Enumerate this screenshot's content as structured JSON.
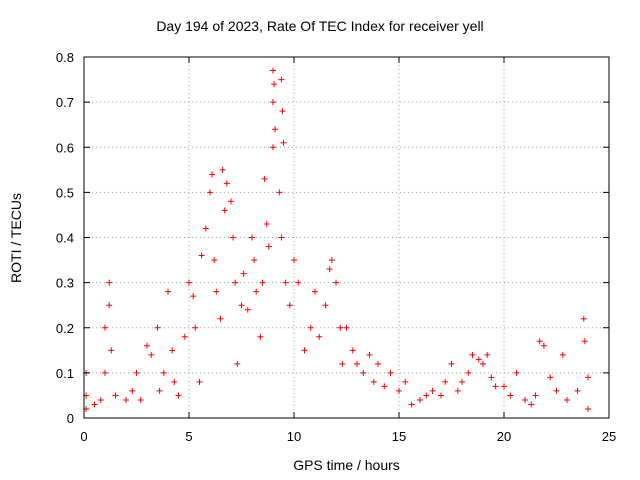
{
  "chart_data": {
    "type": "scatter",
    "title": "Day 194 of 2023, Rate Of TEC Index for receiver yell",
    "xlabel": "GPS time / hours",
    "ylabel": "ROTI / TECUs",
    "xlim": [
      0,
      25
    ],
    "ylim": [
      0,
      0.8
    ],
    "xticks": [
      0,
      5,
      10,
      15,
      20,
      25
    ],
    "yticks": [
      0,
      0.1,
      0.2,
      0.3,
      0.4,
      0.5,
      0.6,
      0.7,
      0.8
    ],
    "grid": true,
    "marker": "+",
    "color": "#ff0000",
    "series": [
      {
        "name": "ROTI",
        "points": [
          [
            0.1,
            0.02
          ],
          [
            0.1,
            0.05
          ],
          [
            0.1,
            0.1
          ],
          [
            0.5,
            0.03
          ],
          [
            0.8,
            0.04
          ],
          [
            1.0,
            0.1
          ],
          [
            1.0,
            0.2
          ],
          [
            1.2,
            0.3
          ],
          [
            1.2,
            0.25
          ],
          [
            1.3,
            0.15
          ],
          [
            1.5,
            0.05
          ],
          [
            2.0,
            0.04
          ],
          [
            2.3,
            0.06
          ],
          [
            2.5,
            0.1
          ],
          [
            2.7,
            0.04
          ],
          [
            3.0,
            0.16
          ],
          [
            3.2,
            0.14
          ],
          [
            3.5,
            0.2
          ],
          [
            3.6,
            0.06
          ],
          [
            3.8,
            0.1
          ],
          [
            4.0,
            0.28
          ],
          [
            4.2,
            0.15
          ],
          [
            4.3,
            0.08
          ],
          [
            4.5,
            0.05
          ],
          [
            4.8,
            0.18
          ],
          [
            5.0,
            0.3
          ],
          [
            5.2,
            0.27
          ],
          [
            5.3,
            0.2
          ],
          [
            5.5,
            0.08
          ],
          [
            5.6,
            0.36
          ],
          [
            5.8,
            0.42
          ],
          [
            6.0,
            0.5
          ],
          [
            6.1,
            0.54
          ],
          [
            6.2,
            0.35
          ],
          [
            6.3,
            0.28
          ],
          [
            6.5,
            0.22
          ],
          [
            6.6,
            0.55
          ],
          [
            6.7,
            0.46
          ],
          [
            6.8,
            0.52
          ],
          [
            7.0,
            0.48
          ],
          [
            7.1,
            0.4
          ],
          [
            7.2,
            0.3
          ],
          [
            7.3,
            0.12
          ],
          [
            7.5,
            0.25
          ],
          [
            7.6,
            0.32
          ],
          [
            7.8,
            0.24
          ],
          [
            8.0,
            0.4
          ],
          [
            8.1,
            0.35
          ],
          [
            8.2,
            0.28
          ],
          [
            8.4,
            0.18
          ],
          [
            8.5,
            0.3
          ],
          [
            8.6,
            0.53
          ],
          [
            8.7,
            0.43
          ],
          [
            8.8,
            0.38
          ],
          [
            9.0,
            0.77
          ],
          [
            9.05,
            0.74
          ],
          [
            9.0,
            0.7
          ],
          [
            9.1,
            0.64
          ],
          [
            9.0,
            0.6
          ],
          [
            9.3,
            0.5
          ],
          [
            9.4,
            0.75
          ],
          [
            9.45,
            0.68
          ],
          [
            9.5,
            0.61
          ],
          [
            9.4,
            0.4
          ],
          [
            9.6,
            0.3
          ],
          [
            9.8,
            0.25
          ],
          [
            10.0,
            0.35
          ],
          [
            10.2,
            0.3
          ],
          [
            10.5,
            0.15
          ],
          [
            10.8,
            0.2
          ],
          [
            11.0,
            0.28
          ],
          [
            11.2,
            0.18
          ],
          [
            11.5,
            0.25
          ],
          [
            11.7,
            0.33
          ],
          [
            11.8,
            0.35
          ],
          [
            12.0,
            0.3
          ],
          [
            12.2,
            0.2
          ],
          [
            12.3,
            0.12
          ],
          [
            12.5,
            0.2
          ],
          [
            12.8,
            0.15
          ],
          [
            13.0,
            0.12
          ],
          [
            13.3,
            0.1
          ],
          [
            13.6,
            0.14
          ],
          [
            13.8,
            0.08
          ],
          [
            14.0,
            0.12
          ],
          [
            14.3,
            0.07
          ],
          [
            14.6,
            0.1
          ],
          [
            15.0,
            0.06
          ],
          [
            15.3,
            0.08
          ],
          [
            15.6,
            0.03
          ],
          [
            16.0,
            0.04
          ],
          [
            16.3,
            0.05
          ],
          [
            16.6,
            0.06
          ],
          [
            17.0,
            0.05
          ],
          [
            17.2,
            0.08
          ],
          [
            17.5,
            0.12
          ],
          [
            17.8,
            0.06
          ],
          [
            18.0,
            0.08
          ],
          [
            18.3,
            0.1
          ],
          [
            18.5,
            0.14
          ],
          [
            18.8,
            0.13
          ],
          [
            19.0,
            0.12
          ],
          [
            19.2,
            0.14
          ],
          [
            19.4,
            0.09
          ],
          [
            19.6,
            0.07
          ],
          [
            20.0,
            0.07
          ],
          [
            20.3,
            0.05
          ],
          [
            20.6,
            0.1
          ],
          [
            21.0,
            0.04
          ],
          [
            21.3,
            0.03
          ],
          [
            21.5,
            0.05
          ],
          [
            21.7,
            0.17
          ],
          [
            21.9,
            0.16
          ],
          [
            22.2,
            0.09
          ],
          [
            22.5,
            0.06
          ],
          [
            22.8,
            0.14
          ],
          [
            23.0,
            0.04
          ],
          [
            23.5,
            0.06
          ],
          [
            23.8,
            0.22
          ],
          [
            23.85,
            0.17
          ],
          [
            24.0,
            0.09
          ],
          [
            24.0,
            0.02
          ]
        ]
      }
    ]
  }
}
